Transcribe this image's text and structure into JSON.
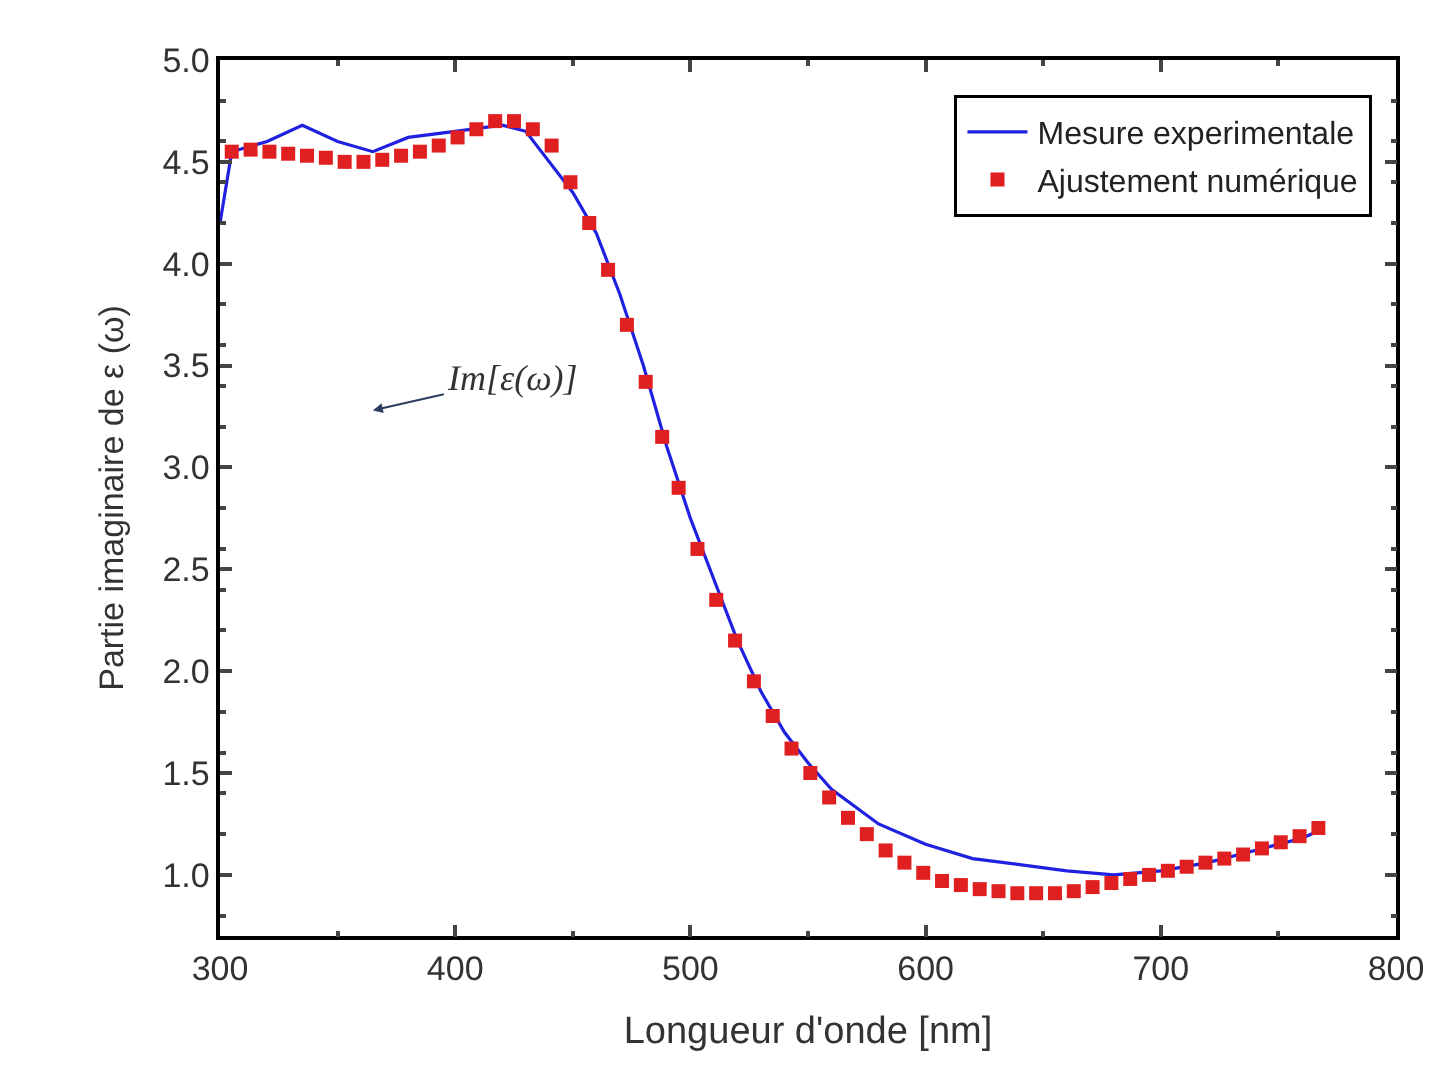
{
  "chart_data": {
    "type": "line",
    "xlabel": "Longueur d'onde [nm]",
    "ylabel": "Partie imaginaire de ε (ω)",
    "xlim": [
      300,
      800
    ],
    "xticks": [
      300,
      400,
      500,
      600,
      700,
      800
    ],
    "ylim": [
      0.7,
      5.0
    ],
    "yticks": [
      {
        "value": 1,
        "label": "1.0"
      },
      {
        "value": 1.5,
        "label": "1.5"
      },
      {
        "value": 2,
        "label": "2.0"
      },
      {
        "value": 2.5,
        "label": "2.5"
      },
      {
        "value": 3,
        "label": "3.0"
      },
      {
        "value": 3.5,
        "label": "3.5"
      },
      {
        "value": 4,
        "label": "4.0"
      },
      {
        "value": 4.5,
        "label": "4.5"
      },
      {
        "value": 5,
        "label": "5.0"
      }
    ],
    "legend": "top right",
    "annotations": [
      "Im[ε(ω)]"
    ],
    "series": [
      {
        "name": "Mesure experimentale",
        "color": "#2020e0",
        "line_style": "solid",
        "x": [
          300,
          305,
          320,
          335,
          350,
          365,
          380,
          400,
          420,
          430,
          440,
          450,
          460,
          470,
          480,
          490,
          500,
          510,
          520,
          530,
          540,
          550,
          560,
          580,
          600,
          620,
          640,
          660,
          680,
          700,
          720,
          740,
          760,
          768
        ],
        "values": [
          4.2,
          4.55,
          4.6,
          4.68,
          4.6,
          4.55,
          4.62,
          4.65,
          4.68,
          4.65,
          4.5,
          4.35,
          4.15,
          3.85,
          3.5,
          3.1,
          2.75,
          2.45,
          2.15,
          1.9,
          1.7,
          1.55,
          1.42,
          1.25,
          1.15,
          1.08,
          1.05,
          1.02,
          1.0,
          1.02,
          1.06,
          1.12,
          1.18,
          1.22
        ]
      },
      {
        "name": "Ajustement numérique",
        "type": "scatter",
        "marker": "square",
        "color": "#e02020",
        "x": [
          305,
          313,
          321,
          329,
          337,
          345,
          353,
          361,
          369,
          377,
          385,
          393,
          401,
          409,
          417,
          425,
          433,
          441,
          449,
          457,
          465,
          473,
          481,
          488,
          495,
          503,
          511,
          519,
          527,
          535,
          543,
          551,
          559,
          567,
          575,
          583,
          591,
          599,
          607,
          615,
          623,
          631,
          639,
          647,
          655,
          663,
          671,
          679,
          687,
          695,
          703,
          711,
          719,
          727,
          735,
          743,
          751,
          759,
          767
        ],
        "values": [
          4.55,
          4.56,
          4.55,
          4.54,
          4.53,
          4.52,
          4.5,
          4.5,
          4.51,
          4.53,
          4.55,
          4.58,
          4.62,
          4.66,
          4.7,
          4.7,
          4.66,
          4.58,
          4.4,
          4.2,
          3.97,
          3.7,
          3.42,
          3.15,
          2.9,
          2.6,
          2.35,
          2.15,
          1.95,
          1.78,
          1.62,
          1.5,
          1.38,
          1.28,
          1.2,
          1.12,
          1.06,
          1.01,
          0.97,
          0.95,
          0.93,
          0.92,
          0.91,
          0.91,
          0.91,
          0.92,
          0.94,
          0.96,
          0.98,
          1.0,
          1.02,
          1.04,
          1.06,
          1.08,
          1.1,
          1.13,
          1.16,
          1.19,
          1.23
        ]
      }
    ]
  }
}
